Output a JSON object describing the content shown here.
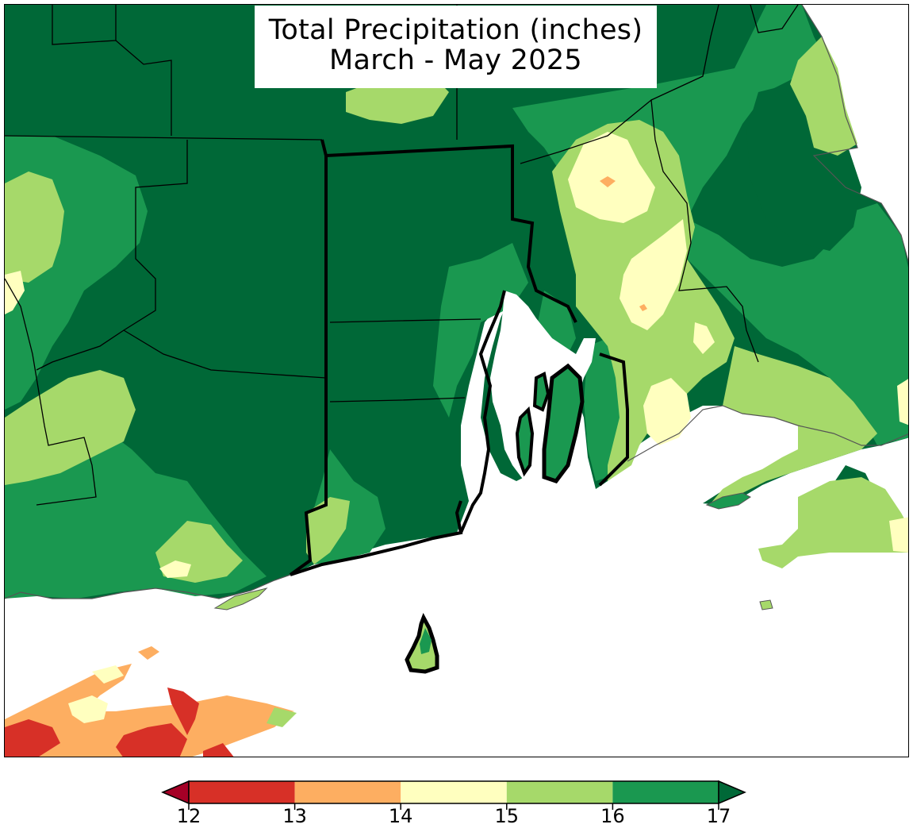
{
  "title": {
    "line1": "Total Precipitation (inches)",
    "line2": "March - May 2025"
  },
  "legend": {
    "ticks": [
      "12",
      "13",
      "14",
      "15",
      "16",
      "17"
    ],
    "bins": [
      {
        "from": 12,
        "to": 13,
        "color": "#d73027"
      },
      {
        "from": 13,
        "to": 14,
        "color": "#fdae61"
      },
      {
        "from": 14,
        "to": 15,
        "color": "#ffffbf"
      },
      {
        "from": 15,
        "to": 16,
        "color": "#a6d96a"
      },
      {
        "from": 16,
        "to": 17,
        "color": "#1a9850"
      }
    ],
    "under_color": "#a50026",
    "over_color": "#006837"
  },
  "colors": {
    "ocean": "#ffffff",
    "boundary": "#000000"
  }
}
